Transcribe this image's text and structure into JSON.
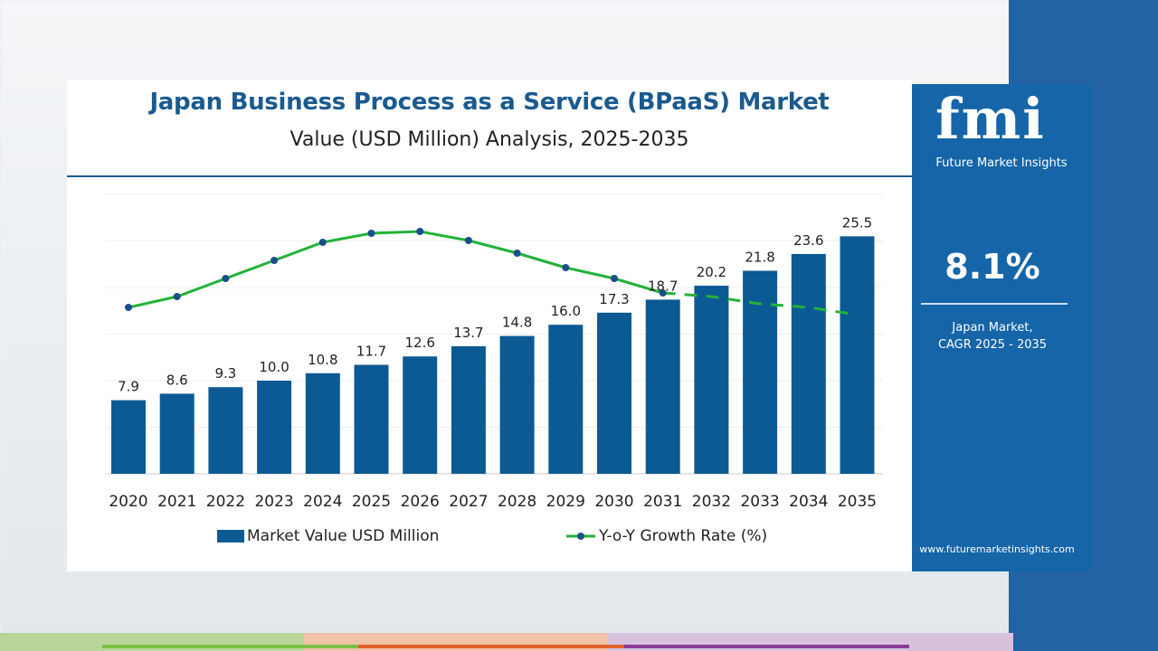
{
  "chart_data": {
    "type": "bar+line",
    "title": "Japan Business Process as a Service (BPaaS) Market",
    "subtitle": "Value (USD Million) Analysis, 2025-2035",
    "categories": [
      "2020",
      "2021",
      "2022",
      "2023",
      "2024",
      "2025",
      "2026",
      "2027",
      "2028",
      "2029",
      "2030",
      "2031",
      "2032",
      "2033",
      "2034",
      "2035"
    ],
    "series": [
      {
        "name": "Market Value USD Million",
        "type": "bar",
        "color": "#0c5a94",
        "values": [
          7.9,
          8.6,
          9.3,
          10.0,
          10.8,
          11.7,
          12.6,
          13.7,
          14.8,
          16.0,
          17.3,
          18.7,
          20.2,
          21.8,
          23.6,
          25.5
        ],
        "labels": [
          "7.9",
          "8.6",
          "9.3",
          "10.0",
          "10.8",
          "11.7",
          "12.6",
          "13.7",
          "14.8",
          "16.0",
          "17.3",
          "18.7",
          "20.2",
          "21.8",
          "23.6",
          "25.5"
        ]
      },
      {
        "name": "Y-o-Y Growth Rate (%)",
        "type": "line",
        "color": "#22b33a",
        "marker_color": "#1b4f8a",
        "values": [
          6.9,
          7.2,
          7.7,
          8.2,
          8.7,
          8.95,
          9.0,
          8.75,
          8.4,
          8.0,
          7.7,
          7.3,
          7.2,
          7.0,
          6.9,
          6.7
        ],
        "dashed_from": "2031"
      }
    ],
    "ylim": [
      0,
      30
    ],
    "grid": true,
    "legend": "bottom"
  },
  "panel": {
    "logo": "fmi",
    "logo_sub": "Future Market Insights",
    "cagr_value": "8.1%",
    "cagr_line1": "Japan Market,",
    "cagr_line2": "CAGR 2025 - 2035",
    "url": "www.futuremarketinsights.com",
    "color": "#1565a8"
  }
}
